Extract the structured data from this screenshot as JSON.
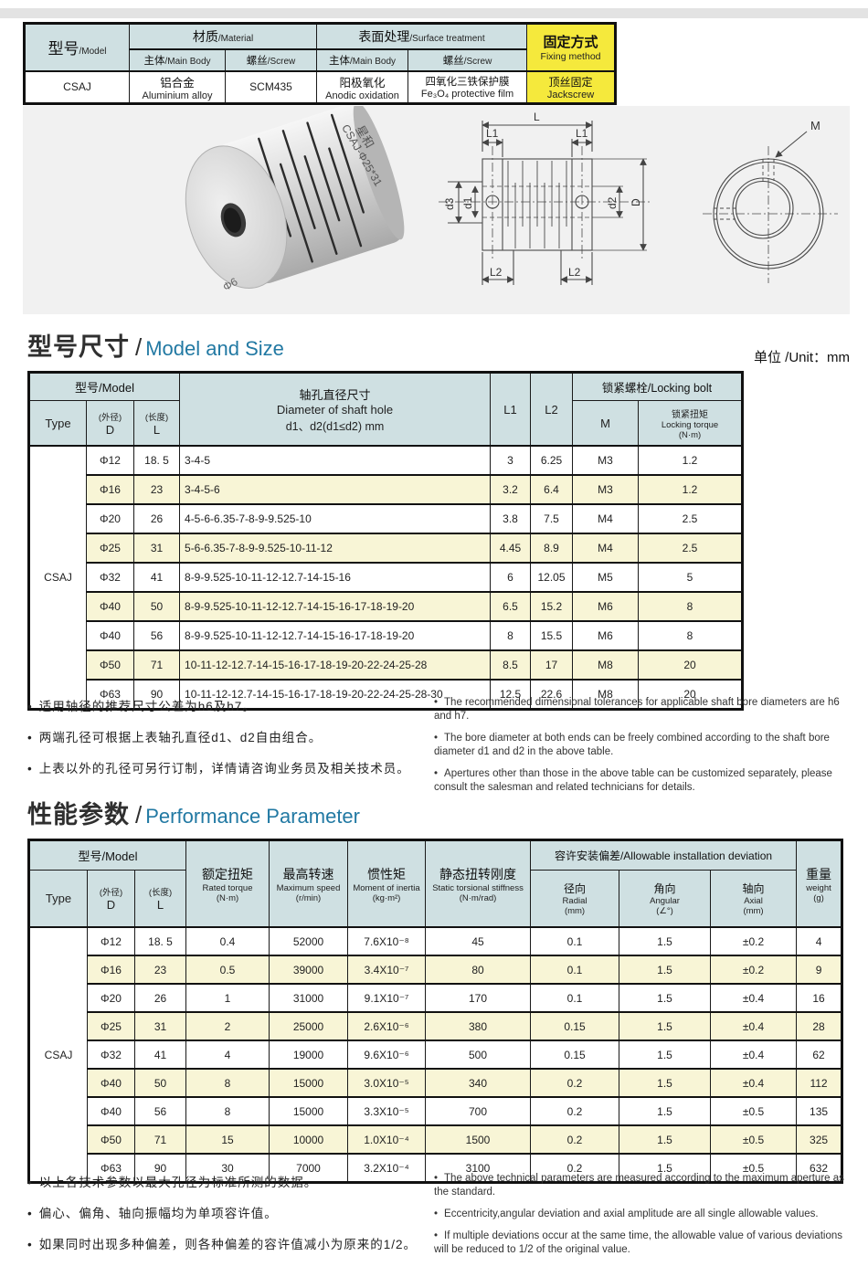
{
  "unit_label": "单位 /Unit：mm",
  "spec_table": {
    "model_zh": "型号",
    "model_en": "/Model",
    "material_zh": "材质",
    "material_en": "/Material",
    "surface_zh": "表面处理",
    "surface_en": "/Surface treatment",
    "fixing_zh": "固定方式",
    "fixing_en": "Fixing method",
    "main_body_zh": "主体",
    "main_body_en": "/Main Body",
    "screw_zh": "螺丝",
    "screw_en": "/Screw",
    "row": {
      "model": "CSAJ",
      "material_body_zh": "铝合金",
      "material_body_en": "Aluminium alloy",
      "material_screw": "SCM435",
      "surface_body_zh": "阳极氧化",
      "surface_body_en": "Anodic oxidation",
      "surface_screw_zh": "四氧化三铁保护膜",
      "surface_screw_en": "Fe₃O₄ protective film",
      "fixing_zh": "顶丝固定",
      "fixing_en": "Jackscrew"
    }
  },
  "photo": {
    "brand": "星和",
    "model_text": "CSAJ-Φ25*31",
    "bore_text": "9Φ"
  },
  "drawing": {
    "L": "L",
    "L1": "L1",
    "L2": "L2",
    "d1": "d1",
    "d2": "d2",
    "d3": "d3",
    "D": "D",
    "M": "M"
  },
  "model_size": {
    "title_zh": "型号尺寸",
    "title_sep": "/",
    "title_en": "Model and Size",
    "header": {
      "model": "型号/Model",
      "type": "Type",
      "d_zh": "(外径)",
      "d": "D",
      "l_zh": "(长度)",
      "l": "L",
      "hole_zh": "轴孔直径尺寸",
      "hole_en": "Diameter of shaft hole",
      "hole_range": "d1、d2(d1≤d2) mm",
      "l1": "L1",
      "l2": "L2",
      "locking": "锁紧螺栓/Locking bolt",
      "m": "M",
      "torque_zh": "锁紧扭矩",
      "torque_en": "Locking torque",
      "torque_unit": "(N·m)"
    },
    "type_label": "CSAJ",
    "rows": [
      [
        "Φ12",
        "18. 5",
        "3-4-5",
        "3",
        "6.25",
        "M3",
        "1.2"
      ],
      [
        "Φ16",
        "23",
        "3-4-5-6",
        "3.2",
        "6.4",
        "M3",
        "1.2"
      ],
      [
        "Φ20",
        "26",
        "4-5-6-6.35-7-8-9-9.525-10",
        "3.8",
        "7.5",
        "M4",
        "2.5"
      ],
      [
        "Φ25",
        "31",
        "5-6-6.35-7-8-9-9.525-10-11-12",
        "4.45",
        "8.9",
        "M4",
        "2.5"
      ],
      [
        "Φ32",
        "41",
        "8-9-9.525-10-11-12-12.7-14-15-16",
        "6",
        "12.05",
        "M5",
        "5"
      ],
      [
        "Φ40",
        "50",
        "8-9-9.525-10-11-12-12.7-14-15-16-17-18-19-20",
        "6.5",
        "15.2",
        "M6",
        "8"
      ],
      [
        "Φ40",
        "56",
        "8-9-9.525-10-11-12-12.7-14-15-16-17-18-19-20",
        "8",
        "15.5",
        "M6",
        "8"
      ],
      [
        "Φ50",
        "71",
        "10-11-12-12.7-14-15-16-17-18-19-20-22-24-25-28",
        "8.5",
        "17",
        "M8",
        "20"
      ],
      [
        "Φ63",
        "90",
        "10-11-12-12.7-14-15-16-17-18-19-20-22-24-25-28-30",
        "12.5",
        "22.6",
        "M8",
        "20"
      ]
    ]
  },
  "notes_mid": {
    "zh": [
      "适用轴径的推荐尺寸公差为h6及h7。",
      "两端孔径可根据上表轴孔直径d1、d2自由组合。",
      "上表以外的孔径可另行订制，详情请咨询业务员及相关技术员。"
    ],
    "en": [
      "The recommended dimensional tolerances for applicable shaft bore diameters are h6 and h7.",
      "The bore diameter at both ends can be freely combined according to the shaft bore diameter d1 and d2 in the above table.",
      "Apertures other than those in the above table can be customized separately, please consult the salesman and related technicians for details."
    ]
  },
  "performance": {
    "title_zh": "性能参数",
    "title_sep": "/",
    "title_en": "Performance Parameter",
    "header": {
      "model": "型号/Model",
      "type": "Type",
      "d_zh": "(外径)",
      "d": "D",
      "l_zh": "(长度)",
      "l": "L",
      "torque_zh": "额定扭矩",
      "torque_en": "Rated torque",
      "torque_unit": "(N·m)",
      "speed_zh": "最高转速",
      "speed_en": "Maximum speed",
      "speed_unit": "(r/min)",
      "inertia_zh": "惯性矩",
      "inertia_en": "Moment of inertia",
      "inertia_unit": "(kg·m²)",
      "stiffness_zh": "静态扭转刚度",
      "stiffness_en": "Static torsional stiffness",
      "stiffness_unit": "(N·m/rad)",
      "deviation": "容许安装偏差/Allowable installation deviation",
      "radial_zh": "径向",
      "radial_en": "Radial",
      "radial_unit": "(mm)",
      "angular_zh": "角向",
      "angular_en": "Angular",
      "angular_unit": "(∠°)",
      "axial_zh": "轴向",
      "axial_en": "Axial",
      "axial_unit": "(mm)",
      "weight_zh": "重量",
      "weight_en": "weight",
      "weight_unit": "(g)"
    },
    "type_label": "CSAJ",
    "rows": [
      [
        "Φ12",
        "18. 5",
        "0.4",
        "52000",
        "7.6X10⁻⁸",
        "45",
        "0.1",
        "1.5",
        "±0.2",
        "4"
      ],
      [
        "Φ16",
        "23",
        "0.5",
        "39000",
        "3.4X10⁻⁷",
        "80",
        "0.1",
        "1.5",
        "±0.2",
        "9"
      ],
      [
        "Φ20",
        "26",
        "1",
        "31000",
        "9.1X10⁻⁷",
        "170",
        "0.1",
        "1.5",
        "±0.4",
        "16"
      ],
      [
        "Φ25",
        "31",
        "2",
        "25000",
        "2.6X10⁻⁶",
        "380",
        "0.15",
        "1.5",
        "±0.4",
        "28"
      ],
      [
        "Φ32",
        "41",
        "4",
        "19000",
        "9.6X10⁻⁶",
        "500",
        "0.15",
        "1.5",
        "±0.4",
        "62"
      ],
      [
        "Φ40",
        "50",
        "8",
        "15000",
        "3.0X10⁻⁵",
        "340",
        "0.2",
        "1.5",
        "±0.4",
        "112"
      ],
      [
        "Φ40",
        "56",
        "8",
        "15000",
        "3.3X10⁻⁵",
        "700",
        "0.2",
        "1.5",
        "±0.5",
        "135"
      ],
      [
        "Φ50",
        "71",
        "15",
        "10000",
        "1.0X10⁻⁴",
        "1500",
        "0.2",
        "1.5",
        "±0.5",
        "325"
      ],
      [
        "Φ63",
        "90",
        "30",
        "7000",
        "3.2X10⁻⁴",
        "3100",
        "0.2",
        "1.5",
        "±0.5",
        "632"
      ]
    ]
  },
  "notes_bottom": {
    "zh": [
      "以上各技术参数以最大孔径为标准所测的数据。",
      "偏心、偏角、轴向振幅均为单项容许值。",
      "如果同时出现多种偏差，则各种偏差的容许值减小为原来的1/2。"
    ],
    "en": [
      "The above technical parameters are measured according to the maximum aperture as the standard.",
      "Eccentricity,angular deviation and axial amplitude are all single allowable values.",
      "If multiple deviations occur at the same time, the allowable value of various deviations will be reduced to 1/2 of the original value."
    ]
  }
}
